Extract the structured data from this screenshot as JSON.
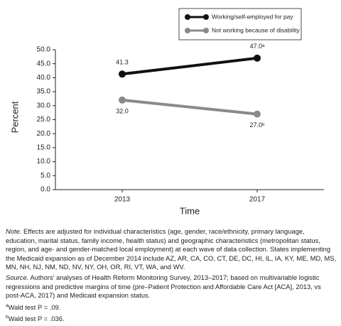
{
  "chart_data": {
    "type": "line",
    "categories": [
      "2013",
      "2017"
    ],
    "series": [
      {
        "name": "Working/self-employed for pay",
        "color": "#111111",
        "values": [
          41.3,
          47.0
        ],
        "value_labels": [
          "41.3",
          "47.0ᵃ"
        ]
      },
      {
        "name": "Not working because of disability",
        "color": "#8a8a8a",
        "values": [
          32.0,
          27.0
        ],
        "value_labels": [
          "32.0",
          "27.0ᵇ"
        ]
      }
    ],
    "ylabel": "Percent",
    "xlabel": "Time",
    "ylim": [
      0,
      50
    ],
    "yticks": [
      {
        "value": 0,
        "label": "0.0"
      },
      {
        "value": 5,
        "label": "5.0"
      },
      {
        "value": 10,
        "label": "10.0"
      },
      {
        "value": 15,
        "label": "15.0"
      },
      {
        "value": 20,
        "label": "20.0"
      },
      {
        "value": 25,
        "label": "25.0"
      },
      {
        "value": 30,
        "label": "30.0"
      },
      {
        "value": 35,
        "label": "35.0"
      },
      {
        "value": 40,
        "label": "40.0"
      },
      {
        "value": 45,
        "label": "45.0"
      },
      {
        "value": 50,
        "label": "50.0"
      }
    ],
    "legend": "upper right",
    "grid": false
  },
  "notes": {
    "note_label": "Note.",
    "note_text": "Effects are adjusted for individual characteristics (age, gender, race/ethnicity, primary language, education, marital status, family income, health status) and geographic characteristics (metropolitan status, region, and age- and gender-matched local employment) at each wave of data collection. States implementing the Medicaid expansion as of December 2014 include AZ, AR, CA, CO, CT, DE, DC, HI, IL, IA, KY, ME, MD, MS, MN, NH, NJ, NM, ND, NV, NY, OH, OR, RI, VT, WA, and WV.",
    "source_label": "Source.",
    "source_text": "Authors' analyses of Health Reform Monitoring Survey, 2013–2017; based on multivariable logistic regressions and predictive margins of time (pre–Patient Protection and Affordable Care Act [ACA], 2013, vs post-ACA, 2017) and Medicaid expansion status.",
    "footnotes": [
      {
        "mark": "a",
        "text": "Wald test P = .09."
      },
      {
        "mark": "b",
        "text": "Wald test P = .036."
      }
    ]
  }
}
